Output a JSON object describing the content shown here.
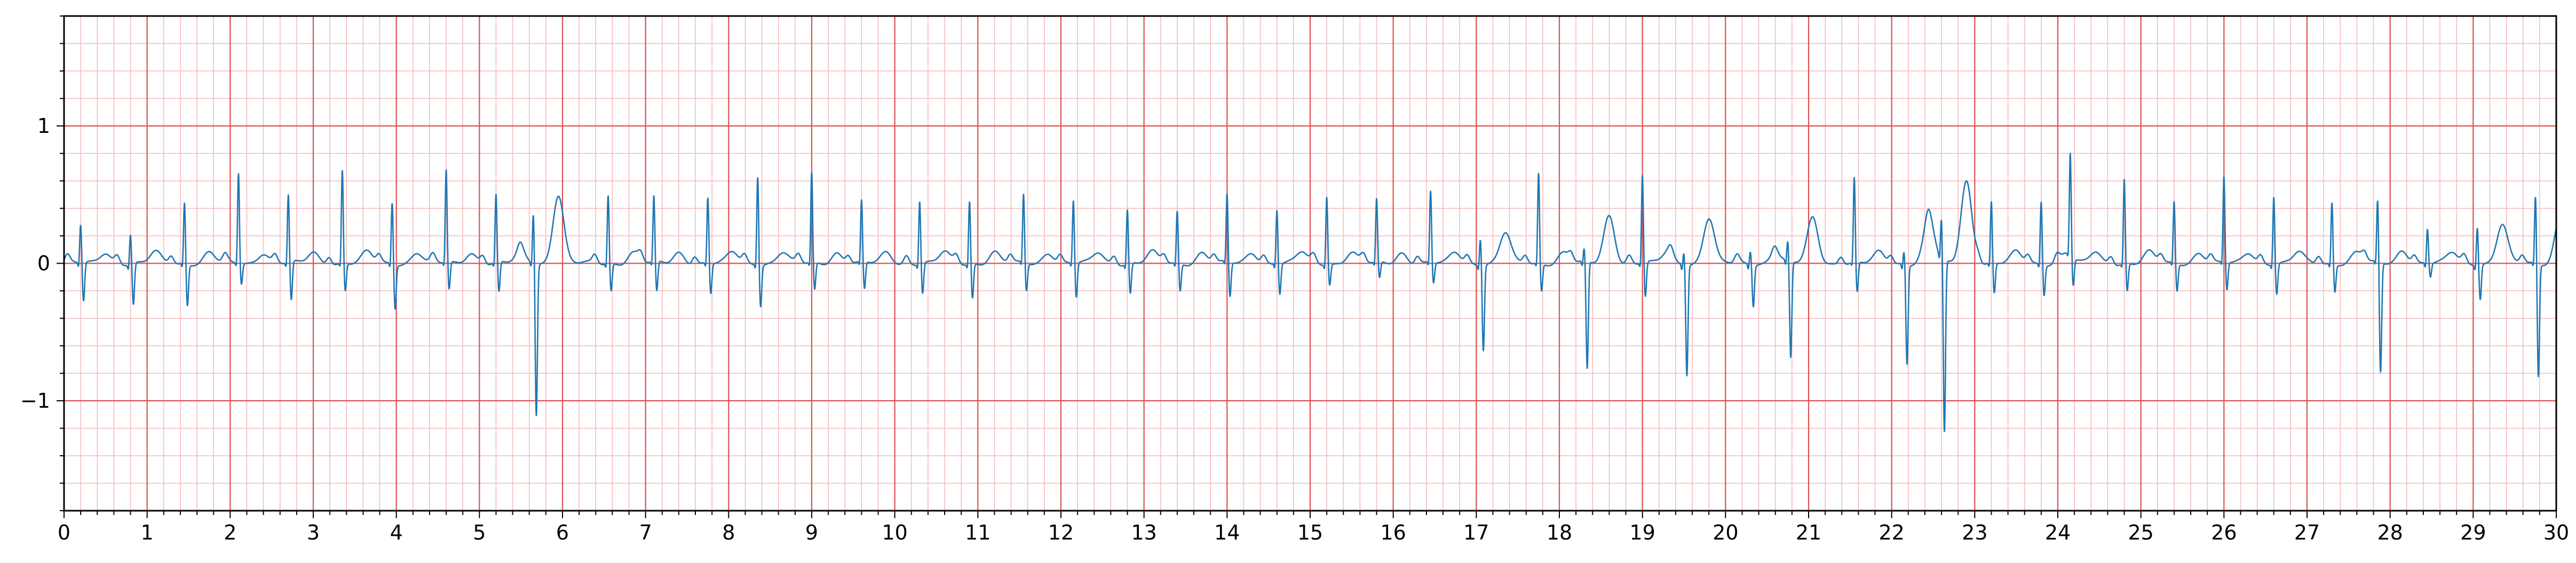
{
  "chart_data": {
    "type": "line",
    "title": "",
    "xlabel": "",
    "ylabel": "",
    "xlim": [
      0,
      30
    ],
    "ylim": [
      -1.8,
      1.8
    ],
    "x_ticks": [
      "0",
      "1",
      "2",
      "3",
      "4",
      "5",
      "6",
      "7",
      "8",
      "9",
      "10",
      "11",
      "12",
      "13",
      "14",
      "15",
      "16",
      "17",
      "18",
      "19",
      "20",
      "21",
      "22",
      "23",
      "24",
      "25",
      "26",
      "27",
      "28",
      "29",
      "30"
    ],
    "y_ticks": [
      "1",
      "0",
      "−1"
    ],
    "y_tick_values": [
      1,
      0,
      -1
    ],
    "grid": "ecg-paper",
    "colors": {
      "line": "#1f77b4",
      "major_grid": "#e05050",
      "minor_grid": "#f7b8b8",
      "axes": "#000000"
    },
    "series": [
      {
        "beats": [
          {
            "t": 0.2,
            "r": 0.28,
            "s": -0.28
          },
          {
            "t": 0.8,
            "r": 0.22,
            "s": -0.3
          },
          {
            "t": 1.45,
            "r": 0.45,
            "s": -0.3
          },
          {
            "t": 2.1,
            "r": 0.66,
            "s": -0.15
          },
          {
            "t": 2.7,
            "r": 0.5,
            "s": -0.28
          },
          {
            "t": 3.35,
            "r": 0.68,
            "s": -0.2
          },
          {
            "t": 3.95,
            "r": 0.45,
            "s": -0.32
          },
          {
            "t": 4.6,
            "r": 0.68,
            "s": -0.2
          },
          {
            "t": 5.2,
            "r": 0.5,
            "s": -0.22
          },
          {
            "t": 5.65,
            "r": 0.38,
            "s": -1.1,
            "t_wave": 0.5
          },
          {
            "t": 6.55,
            "r": 0.5,
            "s": -0.2
          },
          {
            "t": 7.1,
            "r": 0.48,
            "s": -0.22
          },
          {
            "t": 7.75,
            "r": 0.48,
            "s": -0.22
          },
          {
            "t": 8.35,
            "r": 0.65,
            "s": -0.3
          },
          {
            "t": 9.0,
            "r": 0.66,
            "s": -0.2
          },
          {
            "t": 9.6,
            "r": 0.45,
            "s": -0.2
          },
          {
            "t": 10.3,
            "r": 0.46,
            "s": -0.22
          },
          {
            "t": 10.9,
            "r": 0.46,
            "s": -0.25
          },
          {
            "t": 11.55,
            "r": 0.5,
            "s": -0.2
          },
          {
            "t": 12.15,
            "r": 0.46,
            "s": -0.25
          },
          {
            "t": 12.8,
            "r": 0.4,
            "s": -0.22
          },
          {
            "t": 13.4,
            "r": 0.38,
            "s": -0.2
          },
          {
            "t": 14.0,
            "r": 0.5,
            "s": -0.25
          },
          {
            "t": 14.6,
            "r": 0.4,
            "s": -0.22
          },
          {
            "t": 15.2,
            "r": 0.5,
            "s": -0.15
          },
          {
            "t": 15.8,
            "r": 0.46,
            "s": -0.12
          },
          {
            "t": 16.45,
            "r": 0.52,
            "s": -0.15
          },
          {
            "t": 17.05,
            "r": 0.2,
            "s": -0.62,
            "t_wave": 0.22
          },
          {
            "t": 17.75,
            "r": 0.66,
            "s": -0.2
          },
          {
            "t": 18.3,
            "r": 0.1,
            "s": -0.78,
            "t_wave": 0.35
          },
          {
            "t": 19.0,
            "r": 0.65,
            "s": -0.25
          },
          {
            "t": 19.5,
            "r": 0.1,
            "s": -0.8,
            "t_wave": 0.33
          },
          {
            "t": 20.3,
            "r": 0.1,
            "s": -0.3
          },
          {
            "t": 20.75,
            "r": 0.15,
            "s": -0.7,
            "t_wave": 0.33
          },
          {
            "t": 21.55,
            "r": 0.62,
            "s": -0.22
          },
          {
            "t": 22.15,
            "r": 0.1,
            "s": -0.72,
            "t_wave": 0.33
          },
          {
            "t": 22.6,
            "r": 0.3,
            "s": -1.25,
            "t_wave": 0.6
          },
          {
            "t": 23.2,
            "r": 0.45,
            "s": -0.22
          },
          {
            "t": 23.8,
            "r": 0.46,
            "s": -0.22
          },
          {
            "t": 24.15,
            "r": 0.75,
            "s": -0.2
          },
          {
            "t": 24.8,
            "r": 0.62,
            "s": -0.2
          },
          {
            "t": 25.4,
            "r": 0.45,
            "s": -0.2
          },
          {
            "t": 26.0,
            "r": 0.63,
            "s": -0.2
          },
          {
            "t": 26.6,
            "r": 0.5,
            "s": -0.22
          },
          {
            "t": 27.3,
            "r": 0.45,
            "s": -0.2
          },
          {
            "t": 27.85,
            "r": 0.46,
            "s": -0.8,
            "t_wave": 0.1
          },
          {
            "t": 28.45,
            "r": 0.25,
            "s": -0.1
          },
          {
            "t": 29.05,
            "r": 0.28,
            "s": -0.25,
            "t_wave": 0.28
          },
          {
            "t": 29.75,
            "r": 0.5,
            "s": -0.82,
            "t_wave": 0.35
          }
        ]
      }
    ]
  }
}
